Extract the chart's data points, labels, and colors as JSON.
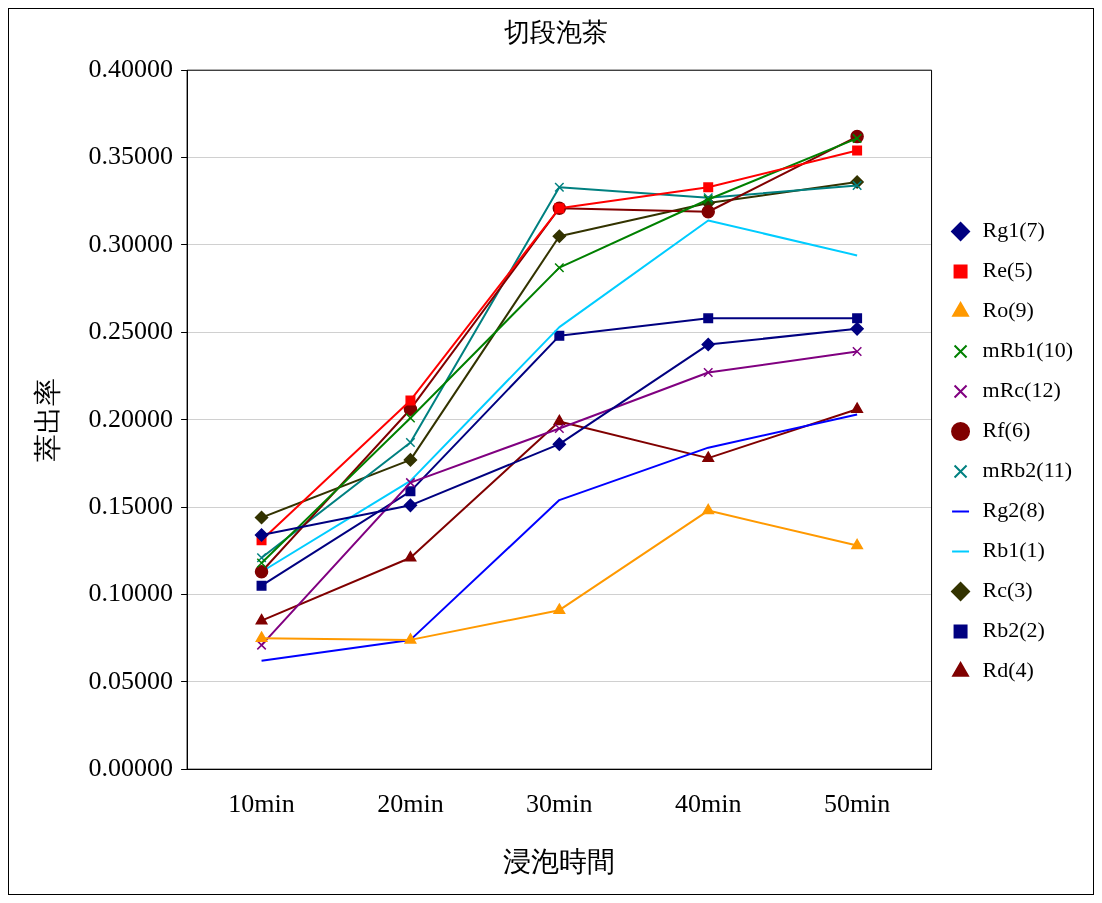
{
  "chart_data": {
    "type": "line",
    "title": "切段泡茶",
    "xlabel": "浸泡時間",
    "ylabel": "萃出率",
    "categories": [
      "10min",
      "20min",
      "30min",
      "40min",
      "50min"
    ],
    "ylim": [
      0,
      0.4
    ],
    "yticks": [
      {
        "value": 0,
        "label": "0.00000"
      },
      {
        "value": 0.05,
        "label": "0.05000"
      },
      {
        "value": 0.1,
        "label": "0.10000"
      },
      {
        "value": 0.15,
        "label": "0.15000"
      },
      {
        "value": 0.2,
        "label": "0.20000"
      },
      {
        "value": 0.25,
        "label": "0.25000"
      },
      {
        "value": 0.3,
        "label": "0.30000"
      },
      {
        "value": 0.35,
        "label": "0.35000"
      },
      {
        "value": 0.4,
        "label": "0.40000"
      }
    ],
    "grid": "y",
    "legend": "right",
    "line_style": "solid",
    "series": [
      {
        "name": "Rg1(7)",
        "color": "#000080",
        "marker": "diamond",
        "values": [
          0.134,
          0.151,
          0.186,
          0.243,
          0.252
        ]
      },
      {
        "name": "Re(5)",
        "color": "#ff0000",
        "marker": "square",
        "values": [
          0.131,
          0.211,
          0.321,
          0.333,
          0.354
        ]
      },
      {
        "name": "Ro(9)",
        "color": "#ff9900",
        "marker": "triangle",
        "values": [
          0.075,
          0.074,
          0.091,
          0.148,
          0.128
        ]
      },
      {
        "name": "mRb1(10)",
        "color": "#008000",
        "marker": "cross",
        "values": [
          0.118,
          0.201,
          0.287,
          0.326,
          0.361
        ]
      },
      {
        "name": "mRc(12)",
        "color": "#800080",
        "marker": "cross",
        "values": [
          0.071,
          0.164,
          0.195,
          0.227,
          0.239
        ]
      },
      {
        "name": "Rf(6)",
        "color": "#800000",
        "marker": "circle",
        "values": [
          0.113,
          0.206,
          0.321,
          0.319,
          0.362
        ]
      },
      {
        "name": "mRb2(11)",
        "color": "#008080",
        "marker": "cross",
        "values": [
          0.121,
          0.187,
          0.333,
          0.327,
          0.334
        ]
      },
      {
        "name": "Rg2(8)",
        "color": "#0000ff",
        "marker": "none",
        "values": [
          0.062,
          0.074,
          0.154,
          0.184,
          0.203
        ]
      },
      {
        "name": "Rb1(1)",
        "color": "#00ccff",
        "marker": "none",
        "values": [
          0.113,
          0.165,
          0.253,
          0.314,
          0.294
        ]
      },
      {
        "name": "Rc(3)",
        "color": "#333300",
        "marker": "diamond",
        "values": [
          0.144,
          0.177,
          0.305,
          0.324,
          0.336
        ]
      },
      {
        "name": "Rb2(2)",
        "color": "#000080",
        "marker": "square",
        "values": [
          0.105,
          0.159,
          0.248,
          0.258,
          0.258
        ]
      },
      {
        "name": "Rd(4)",
        "color": "#800000",
        "marker": "triangle",
        "values": [
          0.085,
          0.121,
          0.199,
          0.178,
          0.206
        ]
      }
    ]
  }
}
